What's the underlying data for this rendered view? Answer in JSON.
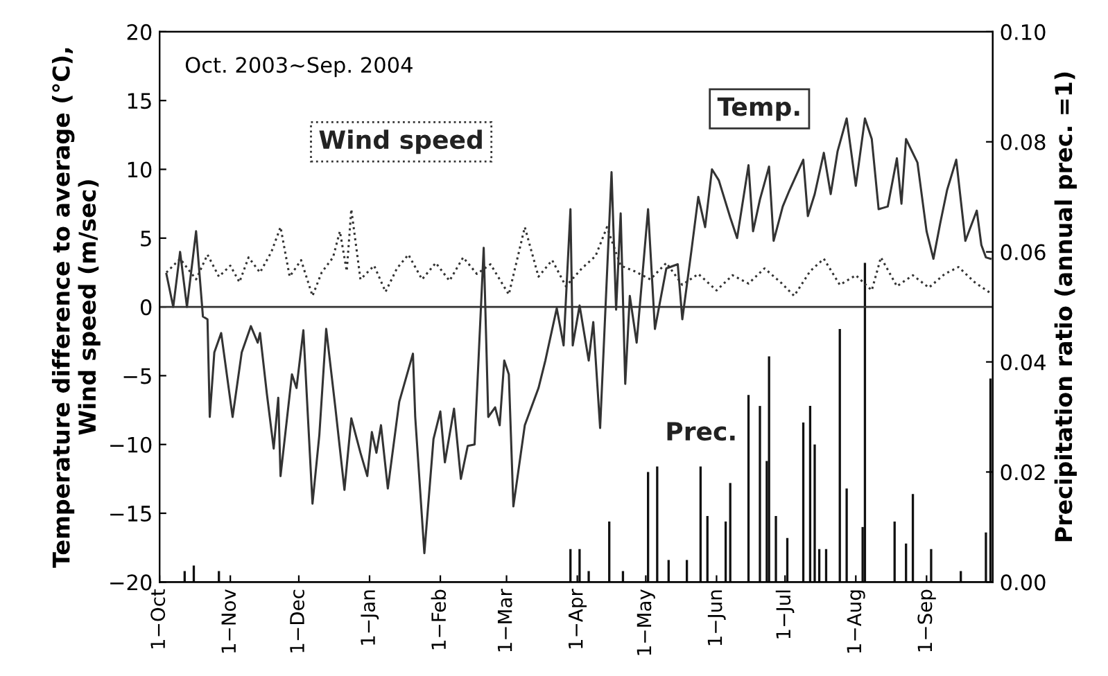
{
  "chart_data": {
    "type": "line",
    "ylabel": "Temperature difference to average (°C),\nWind speed (m/sec)",
    "y2label": "Precipitation ratio (annual prec. =1)",
    "annotations": [
      "Oct. 2003∼Sep. 2004"
    ],
    "xlim": [
      "2003-10-01",
      "2004-09-30"
    ],
    "xticks": [
      {
        "value": "2003-10-01",
        "label": "1−Oct"
      },
      {
        "value": "2003-11-01",
        "label": "1−Nov"
      },
      {
        "value": "2003-12-01",
        "label": "1−Dec"
      },
      {
        "value": "2004-01-01",
        "label": "1−Jan"
      },
      {
        "value": "2004-02-01",
        "label": "1−Feb"
      },
      {
        "value": "2004-03-01",
        "label": "1−Mar"
      },
      {
        "value": "2004-04-01",
        "label": "1−Apr"
      },
      {
        "value": "2004-05-01",
        "label": "1−May"
      },
      {
        "value": "2004-06-01",
        "label": "1−Jun"
      },
      {
        "value": "2004-07-01",
        "label": "1−Jul"
      },
      {
        "value": "2004-08-01",
        "label": "1−Aug"
      },
      {
        "value": "2004-09-01",
        "label": "1−Sep"
      }
    ],
    "ylim": [
      -20,
      20
    ],
    "yticks": [
      {
        "value": -20,
        "label": "−20"
      },
      {
        "value": -15,
        "label": "−15"
      },
      {
        "value": -10,
        "label": "−10"
      },
      {
        "value": -5,
        "label": "−5"
      },
      0,
      5,
      10,
      15,
      20
    ],
    "y2lim": [
      0,
      0.1
    ],
    "y2ticks": [
      {
        "value": 0,
        "label": "0.00"
      },
      {
        "value": 0.02,
        "label": "0.02"
      },
      {
        "value": 0.04,
        "label": "0.04"
      },
      {
        "value": 0.06,
        "label": "0.06"
      },
      {
        "value": 0.08,
        "label": "0.08"
      },
      {
        "value": 0.1,
        "label": "0.10"
      }
    ],
    "ref_lines": [
      {
        "axis": "y",
        "value": 0,
        "color": "#333333"
      }
    ],
    "series": [
      {
        "name": "Temp.",
        "line_style": "solid",
        "color": "#333333",
        "x": [
          "2003-10-04",
          "2003-10-07",
          "2003-10-10",
          "2003-10-13",
          "2003-10-17",
          "2003-10-20",
          "2003-10-22",
          "2003-10-23",
          "2003-10-25",
          "2003-10-28",
          "2003-11-02",
          "2003-11-06",
          "2003-11-10",
          "2003-11-13",
          "2003-11-14",
          "2003-11-17",
          "2003-11-20",
          "2003-11-22",
          "2003-11-23",
          "2003-11-28",
          "2003-11-30",
          "2003-12-03",
          "2003-12-07",
          "2003-12-10",
          "2003-12-13",
          "2003-12-17",
          "2003-12-21",
          "2003-12-24",
          "2003-12-28",
          "2003-12-31",
          "2004-01-02",
          "2004-01-04",
          "2004-01-06",
          "2004-01-09",
          "2004-01-14",
          "2004-01-20",
          "2004-01-21",
          "2004-01-25",
          "2004-01-29",
          "2004-02-01",
          "2004-02-03",
          "2004-02-07",
          "2004-02-10",
          "2004-02-13",
          "2004-02-16",
          "2004-02-20",
          "2004-02-22",
          "2004-02-25",
          "2004-02-27",
          "2004-02-29",
          "2004-03-02",
          "2004-03-04",
          "2004-03-09",
          "2004-03-15",
          "2004-03-18",
          "2004-03-23",
          "2004-03-26",
          "2004-03-29",
          "2004-03-30",
          "2004-04-02",
          "2004-04-06",
          "2004-04-08",
          "2004-04-11",
          "2004-04-16",
          "2004-04-18",
          "2004-04-20",
          "2004-04-22",
          "2004-04-24",
          "2004-04-27",
          "2004-05-02",
          "2004-05-05",
          "2004-05-10",
          "2004-05-15",
          "2004-05-17",
          "2004-05-21",
          "2004-05-24",
          "2004-05-27",
          "2004-05-30",
          "2004-06-02",
          "2004-06-07",
          "2004-06-10",
          "2004-06-15",
          "2004-06-17",
          "2004-06-20",
          "2004-06-24",
          "2004-06-26",
          "2004-06-30",
          "2004-07-03",
          "2004-07-09",
          "2004-07-11",
          "2004-07-14",
          "2004-07-18",
          "2004-07-21",
          "2004-07-24",
          "2004-07-28",
          "2004-08-01",
          "2004-08-05",
          "2004-08-08",
          "2004-08-11",
          "2004-08-15",
          "2004-08-19",
          "2004-08-21",
          "2004-08-23",
          "2004-08-28",
          "2004-09-01",
          "2004-09-04",
          "2004-09-07",
          "2004-09-10",
          "2004-09-14",
          "2004-09-18",
          "2004-09-23",
          "2004-09-25",
          "2004-09-27",
          "2004-09-29"
        ],
        "values": [
          2.4,
          0,
          4.0,
          0,
          5.5,
          -0.7,
          -0.9,
          -8.0,
          -3.3,
          -1.9,
          -8.0,
          -3.3,
          -1.4,
          -2.6,
          -1.9,
          -6.3,
          -10.3,
          -6.6,
          -12.3,
          -4.9,
          -5.9,
          -1.7,
          -14.3,
          -9.3,
          -1.6,
          -7.3,
          -13.3,
          -8.1,
          -10.6,
          -12.3,
          -9.1,
          -10.6,
          -8.6,
          -13.2,
          -6.9,
          -3.4,
          -8.0,
          -17.9,
          -9.6,
          -7.6,
          -11.3,
          -7.4,
          -12.5,
          -10.1,
          -10.0,
          4.3,
          -8.0,
          -7.3,
          -8.6,
          -3.9,
          -4.9,
          -14.5,
          -8.6,
          -5.9,
          -3.9,
          -0.1,
          -2.8,
          7.1,
          -2.8,
          0.1,
          -3.9,
          -1.1,
          -8.8,
          9.8,
          -0.2,
          6.8,
          -5.6,
          0.8,
          -2.6,
          7.1,
          -1.6,
          2.8,
          3.1,
          -0.9,
          4.1,
          8.0,
          5.8,
          10.0,
          9.2,
          6.5,
          5.0,
          10.3,
          5.5,
          7.8,
          10.2,
          4.8,
          7.3,
          8.5,
          10.7,
          6.6,
          8.2,
          11.2,
          8.2,
          11.3,
          13.7,
          8.8,
          13.7,
          12.2,
          7.1,
          7.3,
          10.8,
          7.5,
          12.2,
          10.5,
          5.5,
          3.5,
          6.1,
          8.5,
          10.7,
          4.8,
          7.0,
          4.5,
          3.6,
          3.5
        ]
      },
      {
        "name": "Wind speed",
        "line_style": "dotted",
        "color": "#333333",
        "x": [
          "2003-10-04",
          "2003-10-10",
          "2003-10-17",
          "2003-10-22",
          "2003-10-27",
          "2003-11-01",
          "2003-11-05",
          "2003-11-09",
          "2003-11-14",
          "2003-11-19",
          "2003-11-23",
          "2003-11-27",
          "2003-12-02",
          "2003-12-07",
          "2003-12-11",
          "2003-12-16",
          "2003-12-19",
          "2003-12-22",
          "2003-12-24",
          "2003-12-28",
          "2004-01-03",
          "2004-01-08",
          "2004-01-13",
          "2004-01-18",
          "2004-01-24",
          "2004-01-30",
          "2004-02-05",
          "2004-02-11",
          "2004-02-17",
          "2004-02-23",
          "2004-03-02",
          "2004-03-09",
          "2004-03-15",
          "2004-03-21",
          "2004-03-27",
          "2004-04-03",
          "2004-04-09",
          "2004-04-14",
          "2004-04-20",
          "2004-04-26",
          "2004-05-03",
          "2004-05-10",
          "2004-05-17",
          "2004-05-24",
          "2004-06-01",
          "2004-06-08",
          "2004-06-15",
          "2004-06-22",
          "2004-06-29",
          "2004-07-05",
          "2004-07-12",
          "2004-07-18",
          "2004-07-25",
          "2004-08-01",
          "2004-08-08",
          "2004-08-12",
          "2004-08-19",
          "2004-08-26",
          "2004-09-02",
          "2004-09-09",
          "2004-09-15",
          "2004-09-22",
          "2004-09-29"
        ],
        "values": [
          2.5,
          3.5,
          2.0,
          3.8,
          2.2,
          3.0,
          1.8,
          3.6,
          2.5,
          4.0,
          5.8,
          2.2,
          3.4,
          0.8,
          2.5,
          3.6,
          5.5,
          2.6,
          7.1,
          2.0,
          3.0,
          1.1,
          2.8,
          3.8,
          2.0,
          3.2,
          1.9,
          3.6,
          2.4,
          3.1,
          0.9,
          5.8,
          2.2,
          3.4,
          1.5,
          2.8,
          3.7,
          5.8,
          3.0,
          2.6,
          2.0,
          3.2,
          1.6,
          2.4,
          1.2,
          2.3,
          1.7,
          2.8,
          1.8,
          0.8,
          2.6,
          3.5,
          1.6,
          2.3,
          1.2,
          3.6,
          1.5,
          2.3,
          1.4,
          2.4,
          2.9,
          1.8,
          1.0
        ]
      },
      {
        "name": "Prec.",
        "type": "bar",
        "axis": "y2",
        "color": "#111111",
        "x": [
          "2003-10-12",
          "2003-10-16",
          "2003-10-27",
          "2004-03-29",
          "2004-04-02",
          "2004-04-06",
          "2004-04-15",
          "2004-04-21",
          "2004-05-02",
          "2004-05-06",
          "2004-05-11",
          "2004-05-19",
          "2004-05-25",
          "2004-05-28",
          "2004-06-05",
          "2004-06-07",
          "2004-06-15",
          "2004-06-20",
          "2004-06-23",
          "2004-06-24",
          "2004-06-27",
          "2004-07-02",
          "2004-07-09",
          "2004-07-12",
          "2004-07-14",
          "2004-07-16",
          "2004-07-19",
          "2004-07-25",
          "2004-07-28",
          "2004-08-04",
          "2004-08-05",
          "2004-08-18",
          "2004-08-23",
          "2004-08-26",
          "2004-09-03",
          "2004-09-16",
          "2004-09-27",
          "2004-09-29"
        ],
        "values": [
          0.002,
          0.003,
          0.002,
          0.006,
          0.006,
          0.002,
          0.011,
          0.002,
          0.02,
          0.021,
          0.004,
          0.004,
          0.021,
          0.012,
          0.011,
          0.018,
          0.034,
          0.032,
          0.022,
          0.041,
          0.012,
          0.008,
          0.029,
          0.032,
          0.025,
          0.006,
          0.006,
          0.046,
          0.017,
          0.01,
          0.058,
          0.011,
          0.007,
          0.016,
          0.006,
          0.002,
          0.009,
          0.037
        ]
      }
    ]
  }
}
